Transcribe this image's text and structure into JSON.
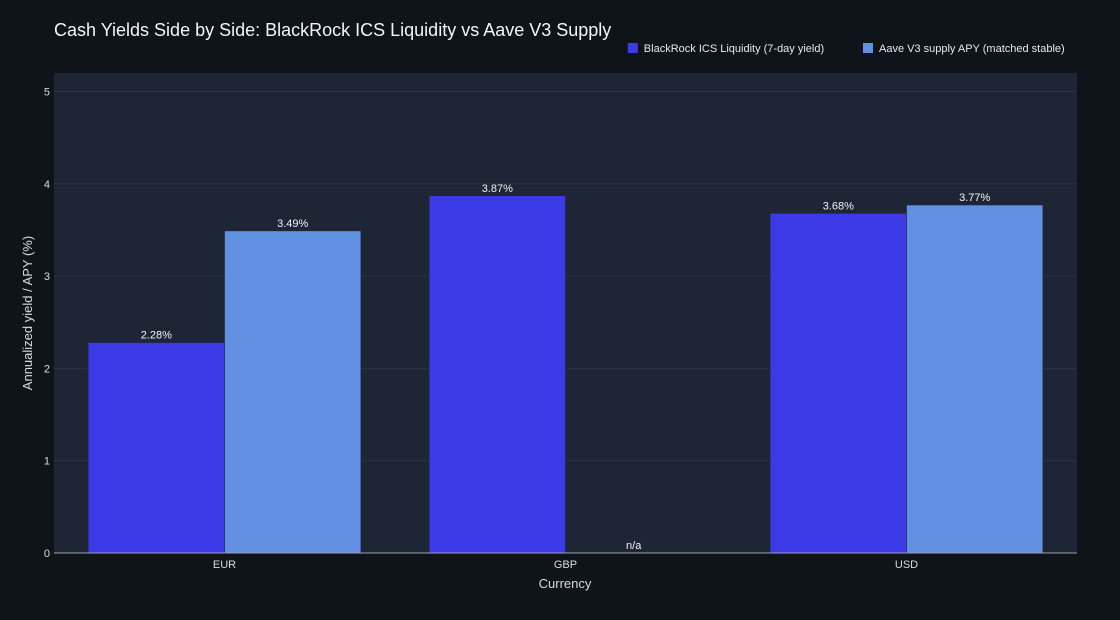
{
  "chart_data": {
    "type": "bar",
    "title": "Cash Yields Side by Side: BlackRock ICS Liquidity vs Aave V3 Supply",
    "xlabel": "Currency",
    "ylabel": "Annualized yield / APY (%)",
    "categories": [
      "EUR",
      "GBP",
      "USD"
    ],
    "ylim": [
      0,
      5.2
    ],
    "yticks": [
      0,
      1,
      2,
      3,
      4,
      5
    ],
    "grid": true,
    "legend_position": "top-right",
    "series": [
      {
        "name": "BlackRock ICS Liquidity (7-day yield)",
        "color": "#3c3ae6",
        "values": [
          2.28,
          3.87,
          3.68
        ],
        "labels": [
          "2.28%",
          "3.87%",
          "3.68%"
        ]
      },
      {
        "name": "Aave V3 supply APY (matched stable)",
        "color": "#6290e3",
        "values": [
          3.49,
          null,
          3.77
        ],
        "labels": [
          "3.49%",
          "n/a",
          "3.77%"
        ]
      }
    ]
  }
}
